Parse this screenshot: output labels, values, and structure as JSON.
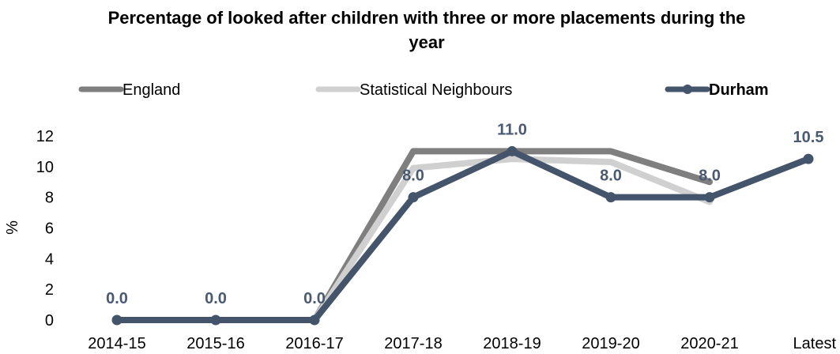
{
  "chart_data": {
    "type": "line",
    "title_line1": "Percentage of looked after children with three or more placements during the",
    "title_line2": "year",
    "ylabel": "%",
    "ylim": [
      0,
      12
    ],
    "yticks": [
      0,
      2,
      4,
      6,
      8,
      10,
      12
    ],
    "categories": [
      "2014-15",
      "2015-16",
      "2016-17",
      "2017-18",
      "2018-19",
      "2019-20",
      "2020-21",
      "Latest"
    ],
    "legend_position": "top",
    "grid": false,
    "series": [
      {
        "name": "England",
        "color": "#7f7f7f",
        "markers": false,
        "values": [
          null,
          null,
          0.0,
          11.0,
          11.0,
          11.0,
          9.0,
          null
        ]
      },
      {
        "name": "Statistical Neighbours",
        "color": "#d0d0d0",
        "markers": false,
        "values": [
          null,
          null,
          0.0,
          9.9,
          10.5,
          10.3,
          7.7,
          null
        ]
      },
      {
        "name": "Durham",
        "color": "#44546a",
        "markers": true,
        "bold": true,
        "values": [
          0.0,
          0.0,
          0.0,
          8.0,
          11.0,
          8.0,
          8.0,
          10.5
        ],
        "data_labels": [
          "0.0",
          "0.0",
          "0.0",
          "8.0",
          "11.0",
          "8.0",
          "8.0",
          "10.5"
        ]
      }
    ]
  }
}
